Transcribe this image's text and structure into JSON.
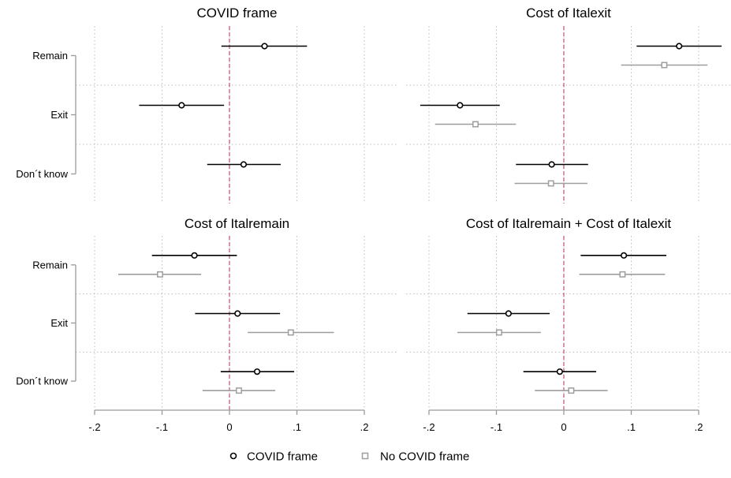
{
  "categories": [
    "Remain",
    "Exit",
    "Don´t know"
  ],
  "x_ticks": [
    -0.2,
    -0.1,
    0,
    0.1,
    0.2
  ],
  "x_tick_labels": [
    "-.2",
    "-.1",
    "0",
    ".1",
    ".2"
  ],
  "legend": [
    {
      "label": "COVID frame",
      "marker": "circle",
      "color": "#000000"
    },
    {
      "label": "No COVID frame",
      "marker": "square",
      "color": "#9e9e9e"
    }
  ],
  "colors": {
    "covid": "#000000",
    "no_covid": "#9e9e9e",
    "zero_line": "#c0506a",
    "grid": "#bdbdbd"
  },
  "chart_data": [
    {
      "type": "scatter",
      "title": "COVID frame",
      "categories": [
        "Remain",
        "Exit",
        "Don´t know"
      ],
      "xlim": [
        -0.2,
        0.2
      ],
      "series": [
        {
          "name": "COVID frame",
          "estimates": [
            0.052,
            -0.071,
            0.021
          ],
          "ci_low": [
            -0.012,
            -0.134,
            -0.033
          ],
          "ci_high": [
            0.115,
            -0.008,
            0.076
          ]
        }
      ]
    },
    {
      "type": "scatter",
      "title": "Cost of Italexit",
      "categories": [
        "Remain",
        "Exit",
        "Don´t know"
      ],
      "xlim": [
        -0.2,
        0.2
      ],
      "series": [
        {
          "name": "COVID frame",
          "estimates": [
            0.171,
            -0.154,
            -0.018
          ],
          "ci_low": [
            0.108,
            -0.213,
            -0.071
          ],
          "ci_high": [
            0.234,
            -0.095,
            0.036
          ]
        },
        {
          "name": "No COVID frame",
          "estimates": [
            0.149,
            -0.131,
            -0.019
          ],
          "ci_low": [
            0.085,
            -0.191,
            -0.073
          ],
          "ci_high": [
            0.213,
            -0.071,
            0.035
          ]
        }
      ]
    },
    {
      "type": "scatter",
      "title": "Cost of Italremain",
      "categories": [
        "Remain",
        "Exit",
        "Don´t know"
      ],
      "xlim": [
        -0.2,
        0.2
      ],
      "series": [
        {
          "name": "COVID frame",
          "estimates": [
            -0.052,
            0.012,
            0.041
          ],
          "ci_low": [
            -0.115,
            -0.051,
            -0.013
          ],
          "ci_high": [
            0.011,
            0.075,
            0.096
          ]
        },
        {
          "name": "No COVID frame",
          "estimates": [
            -0.103,
            0.091,
            0.014
          ],
          "ci_low": [
            -0.165,
            0.027,
            -0.04
          ],
          "ci_high": [
            -0.042,
            0.155,
            0.068
          ]
        }
      ]
    },
    {
      "type": "scatter",
      "title": "Cost of Italremain + Cost of Italexit",
      "categories": [
        "Remain",
        "Exit",
        "Don´t know"
      ],
      "xlim": [
        -0.2,
        0.2
      ],
      "series": [
        {
          "name": "COVID frame",
          "estimates": [
            0.089,
            -0.082,
            -0.006
          ],
          "ci_low": [
            0.025,
            -0.143,
            -0.06
          ],
          "ci_high": [
            0.152,
            -0.021,
            0.048
          ]
        },
        {
          "name": "No COVID frame",
          "estimates": [
            0.087,
            -0.096,
            0.011
          ],
          "ci_low": [
            0.023,
            -0.158,
            -0.043
          ],
          "ci_high": [
            0.15,
            -0.034,
            0.065
          ]
        }
      ]
    }
  ]
}
